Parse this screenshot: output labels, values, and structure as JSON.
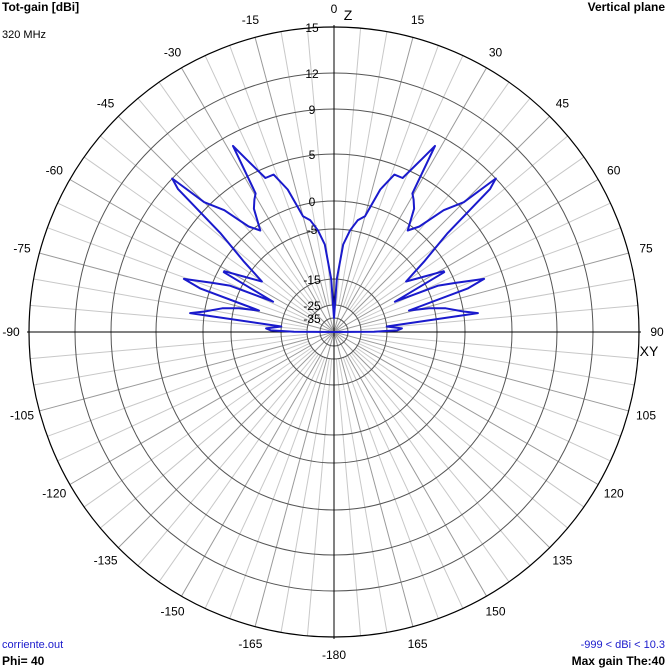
{
  "header": {
    "quantity_label": "Tot-gain [dBi]",
    "plane_label": "Vertical plane",
    "frequency": "320 MHz"
  },
  "footer": {
    "file_name": "corriente.out",
    "phi": "Phi= 40",
    "gain_range": "-999 < dBi < 10.3",
    "max_gain": "Max gain The:40"
  },
  "chart_data": {
    "type": "polar",
    "title": "",
    "axis_labels": {
      "top": "Z",
      "right": "XY"
    },
    "angle_unit": "deg",
    "angle_ticks": [
      0,
      15,
      30,
      45,
      60,
      75,
      90,
      105,
      120,
      135,
      150,
      165,
      -180,
      -165,
      -150,
      -135,
      -120,
      -105,
      -90,
      -75,
      -60,
      -45,
      -30,
      -15
    ],
    "radial_ticks": [
      -35,
      -25,
      -15,
      -5,
      0,
      5,
      9,
      12,
      15
    ],
    "radial_range": [
      -40,
      15
    ],
    "grid": true,
    "series": [
      {
        "color": "#1a1acc",
        "points": [
          [
            0,
            -35
          ],
          [
            3,
            -15
          ],
          [
            6,
            -8
          ],
          [
            9,
            -5
          ],
          [
            12,
            -3
          ],
          [
            15,
            -2
          ],
          [
            18,
            2
          ],
          [
            21,
            4
          ],
          [
            24,
            4
          ],
          [
            27,
            6.5
          ],
          [
            28.5,
            8
          ],
          [
            29.5,
            3
          ],
          [
            31,
            2.5
          ],
          [
            33,
            1.7
          ],
          [
            36,
            -1
          ],
          [
            39,
            0.5
          ],
          [
            42,
            3.5
          ],
          [
            45,
            5.5
          ],
          [
            46.5,
            9
          ],
          [
            47.5,
            8
          ],
          [
            49,
            2
          ],
          [
            52,
            -3
          ],
          [
            55,
            -8
          ],
          [
            58,
            -5
          ],
          [
            61,
            -1
          ],
          [
            61.5,
            -1
          ],
          [
            63.5,
            -12
          ],
          [
            66,
            -3
          ],
          [
            68,
            0
          ],
          [
            70.5,
            3
          ],
          [
            72,
            1
          ],
          [
            74,
            -10
          ],
          [
            76,
            -6
          ],
          [
            78,
            -3
          ],
          [
            81,
            0
          ],
          [
            82.5,
            1.5
          ],
          [
            84,
            -15
          ],
          [
            87,
            -12
          ],
          [
            88.5,
            -13
          ],
          [
            89.5,
            -20
          ],
          [
            90,
            -40
          ]
        ],
        "mirror": true
      }
    ]
  }
}
